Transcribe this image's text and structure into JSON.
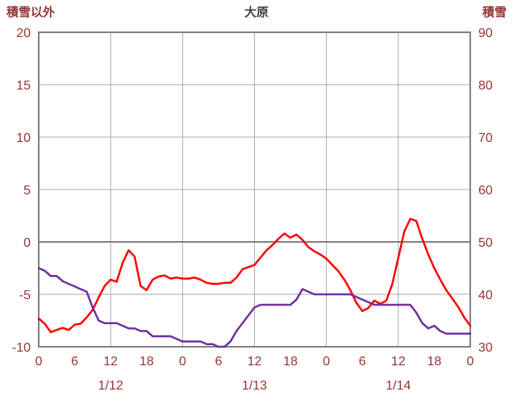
{
  "colors": {
    "temperature_line": "#FF0000",
    "snow_line": "#7030A0",
    "axis_text": "#943634",
    "title_text": "#404040",
    "gridline": "#ABABAB",
    "zero_line": "#808080",
    "frame": "#808080",
    "background": "#FFFFFF"
  },
  "chart_data": {
    "type": "line",
    "title": "大原",
    "x_axis": {
      "hours_total": 72,
      "tick_hours": [
        0,
        6,
        12,
        18,
        24,
        30,
        36,
        42,
        48,
        54,
        60,
        66,
        72
      ],
      "tick_labels": [
        "0",
        "6",
        "12",
        "18",
        "0",
        "6",
        "12",
        "18",
        "0",
        "6",
        "12",
        "18",
        "0"
      ],
      "day_labels": [
        {
          "label": "1/12",
          "hour": 12
        },
        {
          "label": "1/13",
          "hour": 36
        },
        {
          "label": "1/14",
          "hour": 60
        }
      ],
      "vertical_gridline_hours": [
        12,
        24,
        36,
        48,
        60
      ]
    },
    "left_axis": {
      "title": "積雪以外",
      "min": -10,
      "max": 20,
      "tick_values": [
        20,
        15,
        10,
        5,
        0,
        -5,
        -10
      ],
      "tick_labels": [
        "20",
        "15",
        "10",
        "5",
        "0",
        "-5",
        "-10"
      ],
      "emphasized_value": 0
    },
    "right_axis": {
      "title": "積雪",
      "min": 30,
      "max": 90,
      "tick_values": [
        90,
        80,
        70,
        60,
        50,
        40,
        30
      ],
      "tick_labels": [
        "90",
        "80",
        "70",
        "60",
        "50",
        "40",
        "30"
      ]
    },
    "series": [
      {
        "id": "sekisetsu-igai",
        "name": "積雪以外",
        "axis": "left",
        "color": "#FF0000",
        "x_step_hours": 1,
        "values": [
          -7.3,
          -7.8,
          -8.6,
          -8.4,
          -8.2,
          -8.4,
          -7.9,
          -7.8,
          -7.2,
          -6.5,
          -5.3,
          -4.2,
          -3.6,
          -3.8,
          -2.0,
          -0.8,
          -1.4,
          -4.2,
          -4.6,
          -3.6,
          -3.3,
          -3.2,
          -3.5,
          -3.4,
          -3.5,
          -3.5,
          -3.4,
          -3.6,
          -3.9,
          -4.0,
          -4.0,
          -3.9,
          -3.9,
          -3.4,
          -2.6,
          -2.4,
          -2.2,
          -1.5,
          -0.8,
          -0.3,
          0.3,
          0.8,
          0.4,
          0.7,
          0.2,
          -0.5,
          -0.9,
          -1.2,
          -1.6,
          -2.2,
          -2.8,
          -3.6,
          -4.6,
          -5.8,
          -6.6,
          -6.3,
          -5.6,
          -5.9,
          -5.6,
          -4.0,
          -1.5,
          1.0,
          2.2,
          2.0,
          0.3,
          -1.2,
          -2.5,
          -3.6,
          -4.6,
          -5.4,
          -6.2,
          -7.2,
          -8.0
        ]
      },
      {
        "id": "sekisetsu",
        "name": "積雪",
        "axis": "right",
        "color": "#7030A0",
        "x_step_hours": 1,
        "values": [
          45,
          44.5,
          43.5,
          43.5,
          42.5,
          42,
          41.5,
          41,
          40.5,
          37.5,
          35,
          34.5,
          34.5,
          34.5,
          34,
          33.5,
          33.5,
          33,
          33,
          32,
          32,
          32,
          32,
          31.5,
          31,
          31,
          31,
          31,
          30.5,
          30.5,
          30,
          30,
          31,
          33,
          34.5,
          36,
          37.5,
          38,
          38,
          38,
          38,
          38,
          38,
          39,
          41,
          40.5,
          40,
          40,
          40,
          40,
          40,
          40,
          40,
          39.5,
          39,
          38.5,
          38,
          38,
          38,
          38,
          38,
          38,
          38,
          36.5,
          34.5,
          33.5,
          34,
          33,
          32.5,
          32.5,
          32.5,
          32.5,
          32.5
        ]
      }
    ]
  }
}
